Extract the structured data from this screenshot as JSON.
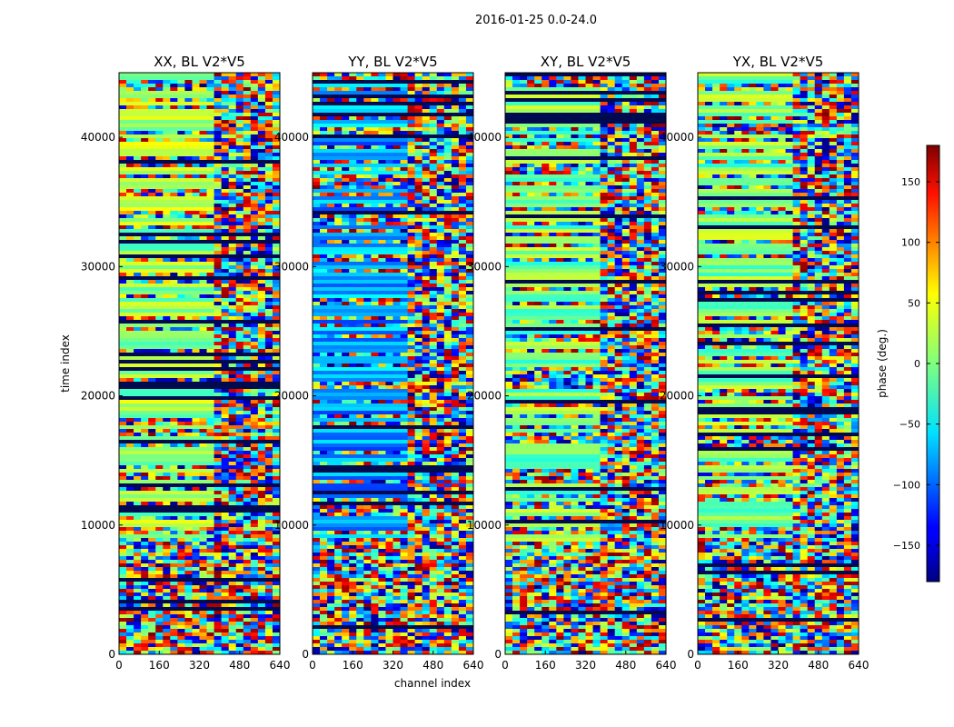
{
  "chart_data": {
    "type": "heatmap",
    "suptitle": "2016-01-25 0.0-24.0",
    "xlabel": "channel index",
    "ylabel": "time index",
    "xlim": [
      0,
      640
    ],
    "ylim": [
      0,
      45000
    ],
    "xticks": [
      0,
      160,
      320,
      480,
      640
    ],
    "yticks": [
      0,
      10000,
      20000,
      30000,
      40000
    ],
    "panels": [
      {
        "title": "XX, BL V2*V5",
        "dominant_phase_deg": 10
      },
      {
        "title": "YY, BL V2*V5",
        "dominant_phase_deg": -80
      },
      {
        "title": "XY, BL V2*V5",
        "dominant_phase_deg": 0
      },
      {
        "title": "YX, BL V2*V5",
        "dominant_phase_deg": 0
      }
    ],
    "colorbar": {
      "label": "phase (deg.)",
      "colormap": "jet",
      "range": [
        -180,
        180
      ],
      "ticks": [
        150,
        100,
        50,
        0,
        -50,
        -100,
        -150
      ],
      "tick_labels": [
        "150",
        "100",
        "50",
        "0",
        "−50",
        "−100",
        "−150"
      ]
    }
  }
}
